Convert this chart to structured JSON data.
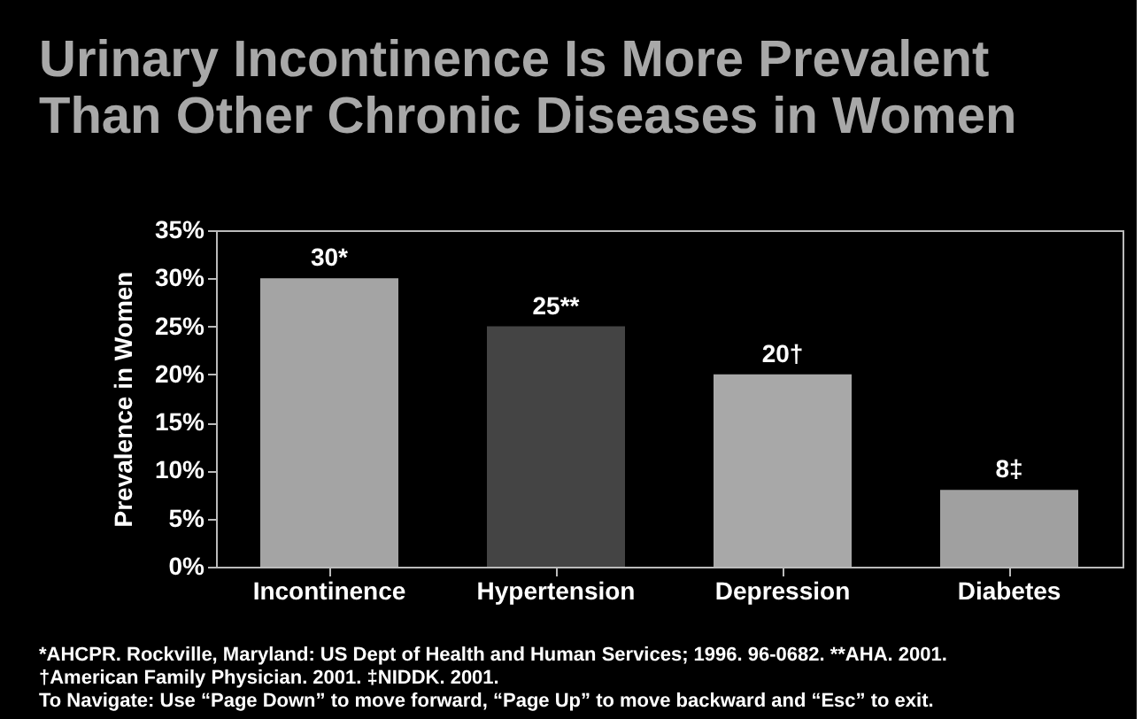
{
  "chart_data": {
    "type": "bar",
    "title": [
      "Urinary Incontinence Is More Prevalent",
      "Than Other Chronic Diseases in Women"
    ],
    "ylabel": "Prevalence in Women",
    "categories": [
      "Incontinence",
      "Hypertension",
      "Depression",
      "Diabetes"
    ],
    "values": [
      30,
      25,
      20,
      8
    ],
    "colors": [
      "#a4a4a4",
      "#444444",
      "#a8a8a8",
      "#a0a0a0"
    ],
    "value_labels": [
      "30*",
      "25**",
      "20†",
      "8‡"
    ],
    "ylim": [
      0,
      35
    ],
    "yticks": [
      {
        "value": 0,
        "label": "0%"
      },
      {
        "value": 5,
        "label": "5%"
      },
      {
        "value": 10,
        "label": "10%"
      },
      {
        "value": 15,
        "label": "15%"
      },
      {
        "value": 20,
        "label": "20%"
      },
      {
        "value": 25,
        "label": "25%"
      },
      {
        "value": 30,
        "label": "30%"
      },
      {
        "value": 35,
        "label": "35%"
      }
    ],
    "grid": false,
    "annotations": [
      "*AHCPR. Rockville, Maryland: US Dept of Health and Human Services; 1996. 96-0682.   **AHA. 2001.",
      "†American Family Physician.  2001.  ‡NIDDK. 2001.",
      "To Navigate: Use “Page Down” to move forward, “Page Up” to move backward and “Esc” to exit."
    ]
  }
}
